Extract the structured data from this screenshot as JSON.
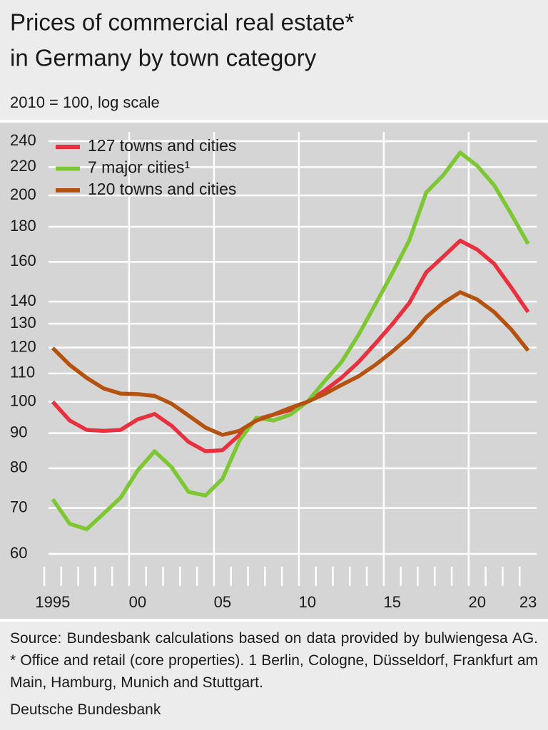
{
  "chart_data": {
    "type": "line",
    "title": [
      "Prices of commercial real estate*",
      "in Germany by town category"
    ],
    "subtitle": "2010 = 100, log scale",
    "log_scale": true,
    "grid": true,
    "legend": "top-left",
    "x": [
      1995,
      1996,
      1997,
      1998,
      1999,
      2000,
      2001,
      2002,
      2003,
      2004,
      2005,
      2006,
      2007,
      2008,
      2009,
      2010,
      2011,
      2012,
      2013,
      2014,
      2015,
      2016,
      2017,
      2018,
      2019,
      2020,
      2021,
      2022,
      2023
    ],
    "xlim": [
      1994.5,
      2023.5
    ],
    "xticks": [
      1995,
      {
        "value": 2000,
        "label": "00"
      },
      {
        "value": 2005,
        "label": "05"
      },
      {
        "value": 2010,
        "label": "10"
      },
      {
        "value": 2015,
        "label": "15"
      },
      {
        "value": 2020,
        "label": "20"
      },
      {
        "value": 2023,
        "label": "23"
      }
    ],
    "ylim": [
      60,
      240
    ],
    "yticks": [
      60,
      70,
      80,
      90,
      100,
      110,
      120,
      130,
      140,
      160,
      180,
      200,
      220,
      240
    ],
    "series": [
      {
        "name": "127 towns and cities",
        "color": "#e8303f",
        "values": [
          100,
          93.9,
          91,
          90.7,
          91,
          94.3,
          96,
          92.3,
          87.4,
          84.7,
          85,
          89.5,
          94.3,
          95.8,
          97.3,
          100,
          103.8,
          108.4,
          114.2,
          121.6,
          129.8,
          139.4,
          154.5,
          162.8,
          171.8,
          166.8,
          159,
          146.9,
          135.2
        ]
      },
      {
        "name": "7 major cities¹",
        "color": "#7dc832",
        "values": [
          72.1,
          66.4,
          65.2,
          68.7,
          72.5,
          79.4,
          84.7,
          80.3,
          73.9,
          73,
          77.2,
          87.8,
          94.8,
          93.9,
          95.8,
          100,
          107.1,
          114.2,
          125.1,
          138.7,
          154,
          172,
          202,
          214,
          231,
          221,
          207,
          188,
          170
        ]
      },
      {
        "name": "120 towns and cities",
        "color": "#b5520f",
        "values": [
          119.8,
          113.2,
          108.4,
          104.6,
          102.8,
          102.6,
          102,
          99.4,
          95.5,
          91.7,
          89.5,
          90.7,
          93.9,
          95.8,
          98,
          100,
          102.6,
          105.8,
          108.9,
          113.2,
          118.4,
          124.4,
          132.9,
          139.4,
          144.5,
          141,
          135.2,
          127.6,
          118.8
        ]
      }
    ],
    "source": "Source: Bundesbank calculations based on data provided by bulwiengesa AG. * Office and retail (core properties). 1 Berlin, Cologne, Düsseldorf, Frankfurt am Main, Hamburg, Munich and Stuttgart.",
    "publisher": "Deutsche Bundesbank"
  }
}
